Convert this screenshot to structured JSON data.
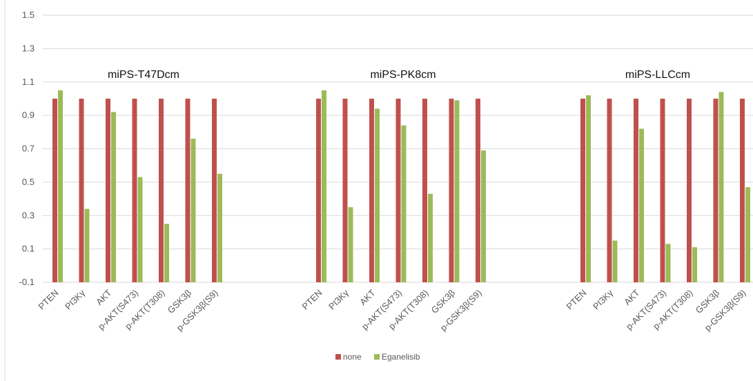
{
  "chart_data": {
    "type": "bar",
    "title": "",
    "xlabel": "",
    "ylabel": "",
    "ylim": [
      -0.1,
      1.5
    ],
    "y_ticks": [
      "1.5",
      "1.3",
      "1.1",
      "0.9",
      "0.7",
      "0.5",
      "0.3",
      "0.1",
      "-0.1"
    ],
    "grid": true,
    "legend_position": "bottom",
    "colors": {
      "none": "#c0504d",
      "Eganelisib": "#9bbb59",
      "grid": "#d9d9d9"
    },
    "series_names": [
      "none",
      "Eganelisib"
    ],
    "categories": [
      "PTEN",
      "PI3Kγ",
      "AKT",
      "p-AKT(S473)",
      "p-AKT(T308)",
      "GSK3β",
      "p-GSK3β(S9)"
    ],
    "panels": [
      {
        "title": "miPS-T47Dcm",
        "series": [
          {
            "name": "none",
            "values": [
              1.0,
              1.0,
              1.0,
              1.0,
              1.0,
              1.0,
              1.0
            ]
          },
          {
            "name": "Eganelisib",
            "values": [
              1.05,
              0.34,
              0.92,
              0.53,
              0.25,
              0.76,
              0.55
            ]
          }
        ]
      },
      {
        "title": "miPS-PK8cm",
        "series": [
          {
            "name": "none",
            "values": [
              1.0,
              1.0,
              1.0,
              1.0,
              1.0,
              1.0,
              1.0
            ]
          },
          {
            "name": "Eganelisib",
            "values": [
              1.05,
              0.35,
              0.94,
              0.84,
              0.43,
              0.99,
              0.69
            ]
          }
        ]
      },
      {
        "title": "miPS-LLCcm",
        "series": [
          {
            "name": "none",
            "values": [
              1.0,
              1.0,
              1.0,
              1.0,
              1.0,
              1.0,
              1.0
            ]
          },
          {
            "name": "Eganelisib",
            "values": [
              1.02,
              0.15,
              0.82,
              0.13,
              0.11,
              1.04,
              0.47
            ]
          }
        ]
      }
    ]
  }
}
